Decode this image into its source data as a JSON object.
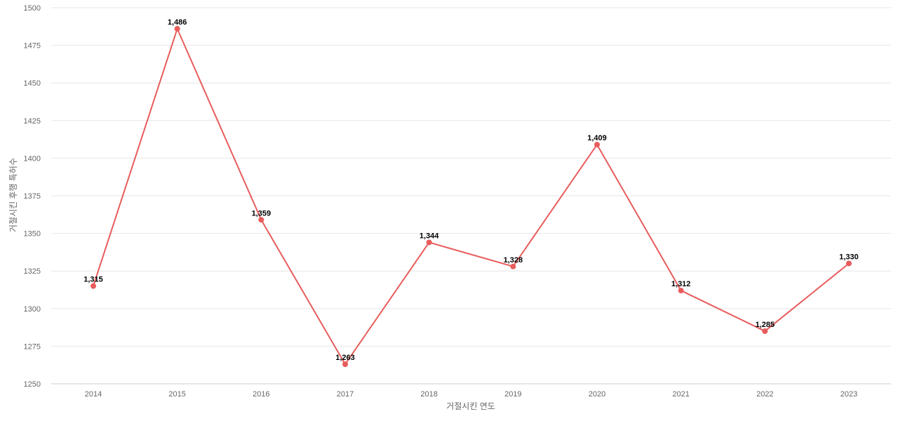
{
  "chart_data": {
    "type": "line",
    "title": "",
    "xlabel": "거절시킨 연도",
    "ylabel": "거절시킨 후행 특허수",
    "x": [
      "2014",
      "2015",
      "2016",
      "2017",
      "2018",
      "2019",
      "2020",
      "2021",
      "2022",
      "2023"
    ],
    "series": [
      {
        "values": [
          1315,
          1486,
          1359,
          1263,
          1344,
          1328,
          1409,
          1312,
          1285,
          1330
        ],
        "labels": [
          "1,315",
          "1,486",
          "1,359",
          "1,263",
          "1,344",
          "1,328",
          "1,409",
          "1,312",
          "1,285",
          "1,330"
        ],
        "color": "#e85c5c"
      }
    ],
    "ylim": [
      1250,
      1500
    ],
    "yticks": [
      "1250",
      "1275",
      "1300",
      "1325",
      "1350",
      "1375",
      "1400",
      "1425",
      "1450",
      "1475",
      "1500"
    ],
    "grid": true,
    "legend": "none"
  }
}
